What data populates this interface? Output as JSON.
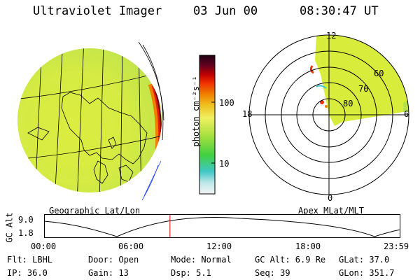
{
  "header": {
    "title": "Ultraviolet Imager",
    "date": "03 Jun 00",
    "time": "08:30:47 UT"
  },
  "colorbar": {
    "unit": "photon cm⁻²s⁻¹",
    "ticks": [
      "100",
      "10"
    ],
    "scale": "log",
    "colors": [
      "#f2f2f2",
      "#bfe8ea",
      "#40c8c8",
      "#40d040",
      "#a8e040",
      "#f0f060",
      "#f0c020",
      "#f08000",
      "#f03000",
      "#c00000",
      "#600020",
      "#200010"
    ]
  },
  "polar_plot": {
    "mlt_labels": {
      "top": "12",
      "left": "18",
      "right": "6",
      "bottom": "0"
    },
    "lat_labels": [
      "60",
      "70",
      "80"
    ]
  },
  "panel_labels": {
    "left": "Geographic Lat/Lon",
    "right": "Apex MLat/MLT"
  },
  "orbit_plot": {
    "ylabel": "GC Alt",
    "y_ticks": [
      "9.0",
      "1.8"
    ],
    "x_ticks": [
      "00:00",
      "06:00",
      "12:00",
      "18:00",
      "23:59"
    ],
    "current_time_fraction": 0.354
  },
  "info": {
    "row1": {
      "flt": "Flt: LBHL",
      "door": "Door: Open",
      "mode": "Mode: Normal",
      "gcalt": "GC Alt: 6.9 Re",
      "glat": "GLat:  37.0"
    },
    "row2": {
      "ip": "IP: 36.0",
      "gain": "Gain: 13",
      "dsp": "Dsp:    5.1",
      "seq": "Seq: 39",
      "glon": "GLon: 351.7"
    }
  }
}
